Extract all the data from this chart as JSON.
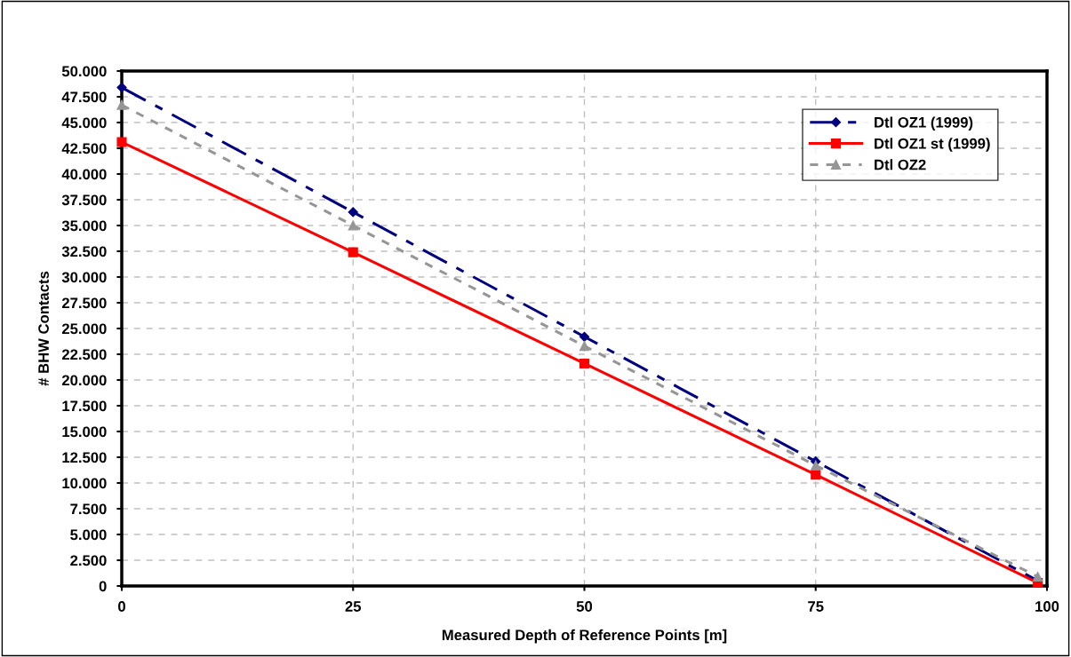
{
  "chart_data": {
    "type": "line",
    "xlabel": "Measured Depth of Reference Points [m]",
    "ylabel": "# BHW Contacts",
    "x": [
      0,
      25,
      50,
      75,
      99
    ],
    "series": [
      {
        "name": "Dtl OZ1 (1999)",
        "color": "#000080",
        "values": [
          48400,
          36300,
          24200,
          12100,
          500
        ],
        "marker": "diamond",
        "line_style": "dashdot"
      },
      {
        "name": "Dtl OZ1 st (1999)",
        "color": "#ff0000",
        "values": [
          43100,
          32400,
          21600,
          10800,
          300
        ],
        "marker": "square",
        "line_style": "solid"
      },
      {
        "name": "Dtl OZ2",
        "color": "#969696",
        "values": [
          46700,
          35000,
          23300,
          11700,
          900
        ],
        "marker": "triangle",
        "line_style": "dotted"
      }
    ],
    "xlim": [
      0,
      100
    ],
    "xticks": [
      0,
      25,
      50,
      75,
      100
    ],
    "ylim": [
      0,
      50000
    ],
    "yticks": [
      {
        "value": 0,
        "label": "0"
      },
      {
        "value": 2500,
        "label": "2.500"
      },
      {
        "value": 5000,
        "label": "5.000"
      },
      {
        "value": 7500,
        "label": "7.500"
      },
      {
        "value": 10000,
        "label": "10.000"
      },
      {
        "value": 12500,
        "label": "12.500"
      },
      {
        "value": 15000,
        "label": "15.000"
      },
      {
        "value": 17500,
        "label": "17.500"
      },
      {
        "value": 20000,
        "label": "20.000"
      },
      {
        "value": 22500,
        "label": "22.500"
      },
      {
        "value": 25000,
        "label": "25.000"
      },
      {
        "value": 27500,
        "label": "27.500"
      },
      {
        "value": 30000,
        "label": "30.000"
      },
      {
        "value": 32500,
        "label": "32.500"
      },
      {
        "value": 35000,
        "label": "35.000"
      },
      {
        "value": 37500,
        "label": "37.500"
      },
      {
        "value": 40000,
        "label": "40.000"
      },
      {
        "value": 42500,
        "label": "42.500"
      },
      {
        "value": 45000,
        "label": "45.000"
      },
      {
        "value": 47500,
        "label": "47.500"
      },
      {
        "value": 50000,
        "label": "50.000"
      }
    ],
    "grid": true,
    "legend": "top right"
  }
}
